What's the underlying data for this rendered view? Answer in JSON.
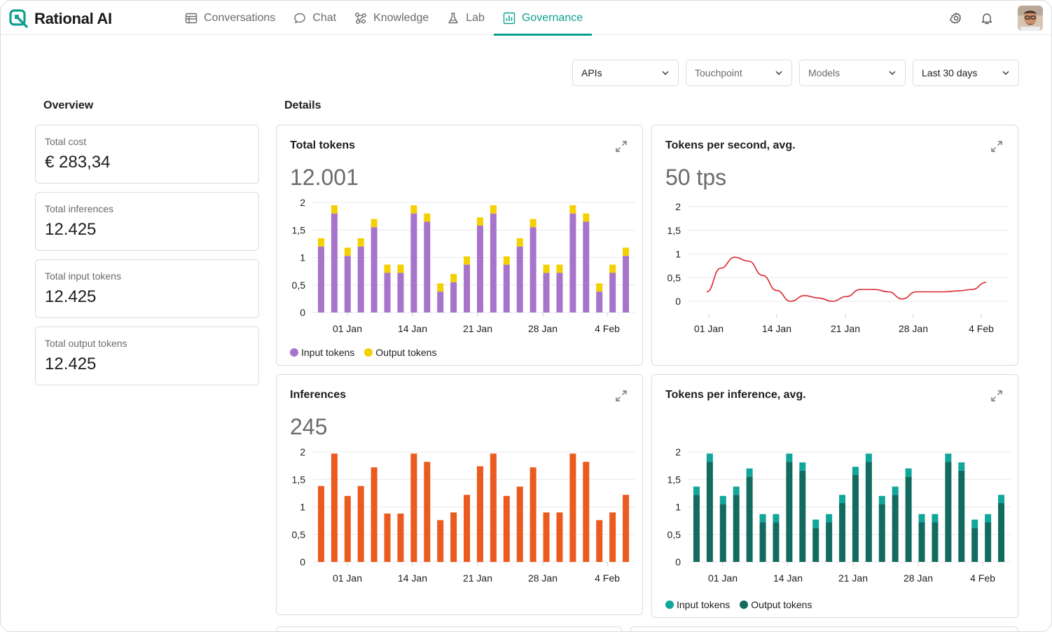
{
  "app": {
    "name": "Rational AI"
  },
  "nav": [
    {
      "label": "Conversations",
      "icon": "table-icon",
      "active": false
    },
    {
      "label": "Chat",
      "icon": "chat-bubble-icon",
      "active": false
    },
    {
      "label": "Knowledge",
      "icon": "graph-nodes-icon",
      "active": false
    },
    {
      "label": "Lab",
      "icon": "flask-icon",
      "active": false
    },
    {
      "label": "Governance",
      "icon": "bar-chart-icon",
      "active": true
    }
  ],
  "filters": [
    {
      "label": "APIs",
      "selected": true
    },
    {
      "label": "Touchpoint",
      "selected": false
    },
    {
      "label": "Models",
      "selected": false
    },
    {
      "label": "Last 30 days",
      "selected": true
    }
  ],
  "overview": {
    "title": "Overview",
    "stats": [
      {
        "label": "Total cost",
        "value": "€ 283,34"
      },
      {
        "label": "Total inferences",
        "value": "12.425"
      },
      {
        "label": "Total input tokens",
        "value": "12.425"
      },
      {
        "label": "Total output tokens",
        "value": "12.425"
      }
    ]
  },
  "details": {
    "title": "Details"
  },
  "colors": {
    "accent": "#0f9f8f",
    "purple": "#a774cc",
    "yellow": "#f5d000",
    "red": "#d9262a",
    "orange": "#eb5a1e",
    "teal_light": "#11a69a",
    "teal_dark": "#136b60"
  },
  "cards": {
    "total_tokens": {
      "title": "Total tokens",
      "value": "12.001"
    },
    "tps": {
      "title": "Tokens per second, avg.",
      "value": "50 tps"
    },
    "inferences": {
      "title": "Inferences",
      "value": "245"
    },
    "tpi": {
      "title": "Tokens per inference, avg."
    }
  },
  "chart_data": [
    {
      "id": "total_tokens",
      "type": "bar",
      "stacked": true,
      "title": "Total tokens",
      "ylim": [
        0,
        2
      ],
      "yticks": [
        "0",
        "0,5",
        "1",
        "1,5",
        "2"
      ],
      "xticks": [
        "01 Jan",
        "14 Jan",
        "21 Jan",
        "28 Jan",
        "4 Feb"
      ],
      "series": [
        {
          "name": "Input tokens",
          "color": "#a774cc",
          "values": [
            1.2,
            1.8,
            1.03,
            1.2,
            1.55,
            0.72,
            0.72,
            1.8,
            1.65,
            0.38,
            0.55,
            0.87,
            1.58,
            1.8,
            0.87,
            1.2,
            1.55,
            0.72,
            0.72,
            1.8,
            1.65,
            0.38,
            0.72,
            1.03
          ]
        },
        {
          "name": "Output tokens",
          "color": "#f5d000",
          "values": [
            0.15,
            0.15,
            0.15,
            0.15,
            0.15,
            0.15,
            0.15,
            0.15,
            0.15,
            0.15,
            0.15,
            0.15,
            0.15,
            0.15,
            0.15,
            0.15,
            0.15,
            0.15,
            0.15,
            0.15,
            0.15,
            0.15,
            0.15,
            0.15
          ]
        }
      ]
    },
    {
      "id": "tps",
      "type": "line",
      "title": "Tokens per second, avg.",
      "ylim": [
        0,
        2
      ],
      "yticks": [
        "0",
        "0,5",
        "1",
        "1,5",
        "2"
      ],
      "xticks": [
        "01 Jan",
        "14 Jan",
        "21 Jan",
        "28 Jan",
        "4 Feb"
      ],
      "series": [
        {
          "name": "",
          "color": "#d9262a",
          "values": [
            0.2,
            0.7,
            0.93,
            0.85,
            0.55,
            0.23,
            0.0,
            0.12,
            0.07,
            0.0,
            0.1,
            0.25,
            0.25,
            0.2,
            0.05,
            0.2,
            0.2,
            0.2,
            0.22,
            0.25,
            0.4
          ]
        }
      ]
    },
    {
      "id": "inferences",
      "type": "bar",
      "stacked": false,
      "title": "Inferences",
      "ylim": [
        0,
        2
      ],
      "yticks": [
        "0",
        "0,5",
        "1",
        "1,5",
        "2"
      ],
      "xticks": [
        "01 Jan",
        "14 Jan",
        "21 Jan",
        "28 Jan",
        "4 Feb"
      ],
      "series": [
        {
          "name": "",
          "color": "#eb5a1e",
          "values": [
            1.38,
            1.97,
            1.2,
            1.38,
            1.72,
            0.88,
            0.88,
            1.97,
            1.82,
            0.76,
            0.9,
            1.22,
            1.74,
            1.97,
            1.2,
            1.37,
            1.72,
            0.9,
            0.9,
            1.97,
            1.82,
            0.76,
            0.9,
            1.22
          ]
        }
      ]
    },
    {
      "id": "tpi",
      "type": "bar",
      "stacked": true,
      "title": "Tokens per inference, avg.",
      "ylim": [
        0,
        2
      ],
      "yticks": [
        "0",
        "0,5",
        "1",
        "1,5",
        "2"
      ],
      "xticks": [
        "01 Jan",
        "14 Jan",
        "21 Jan",
        "28 Jan",
        "4 Feb"
      ],
      "series": [
        {
          "name": "Output tokens",
          "color": "#136b60",
          "values": [
            1.22,
            1.82,
            1.05,
            1.22,
            1.55,
            0.72,
            0.72,
            1.82,
            1.66,
            0.62,
            0.72,
            1.07,
            1.58,
            1.82,
            1.05,
            1.22,
            1.55,
            0.72,
            0.72,
            1.82,
            1.66,
            0.62,
            0.72,
            1.07
          ]
        },
        {
          "name": "Input tokens",
          "color": "#11a69a",
          "values": [
            0.15,
            0.15,
            0.15,
            0.15,
            0.15,
            0.15,
            0.15,
            0.15,
            0.15,
            0.15,
            0.15,
            0.15,
            0.15,
            0.15,
            0.15,
            0.15,
            0.15,
            0.15,
            0.15,
            0.15,
            0.15,
            0.15,
            0.15,
            0.15
          ]
        }
      ],
      "legend": [
        "Input tokens",
        "Output tokens"
      ]
    }
  ]
}
